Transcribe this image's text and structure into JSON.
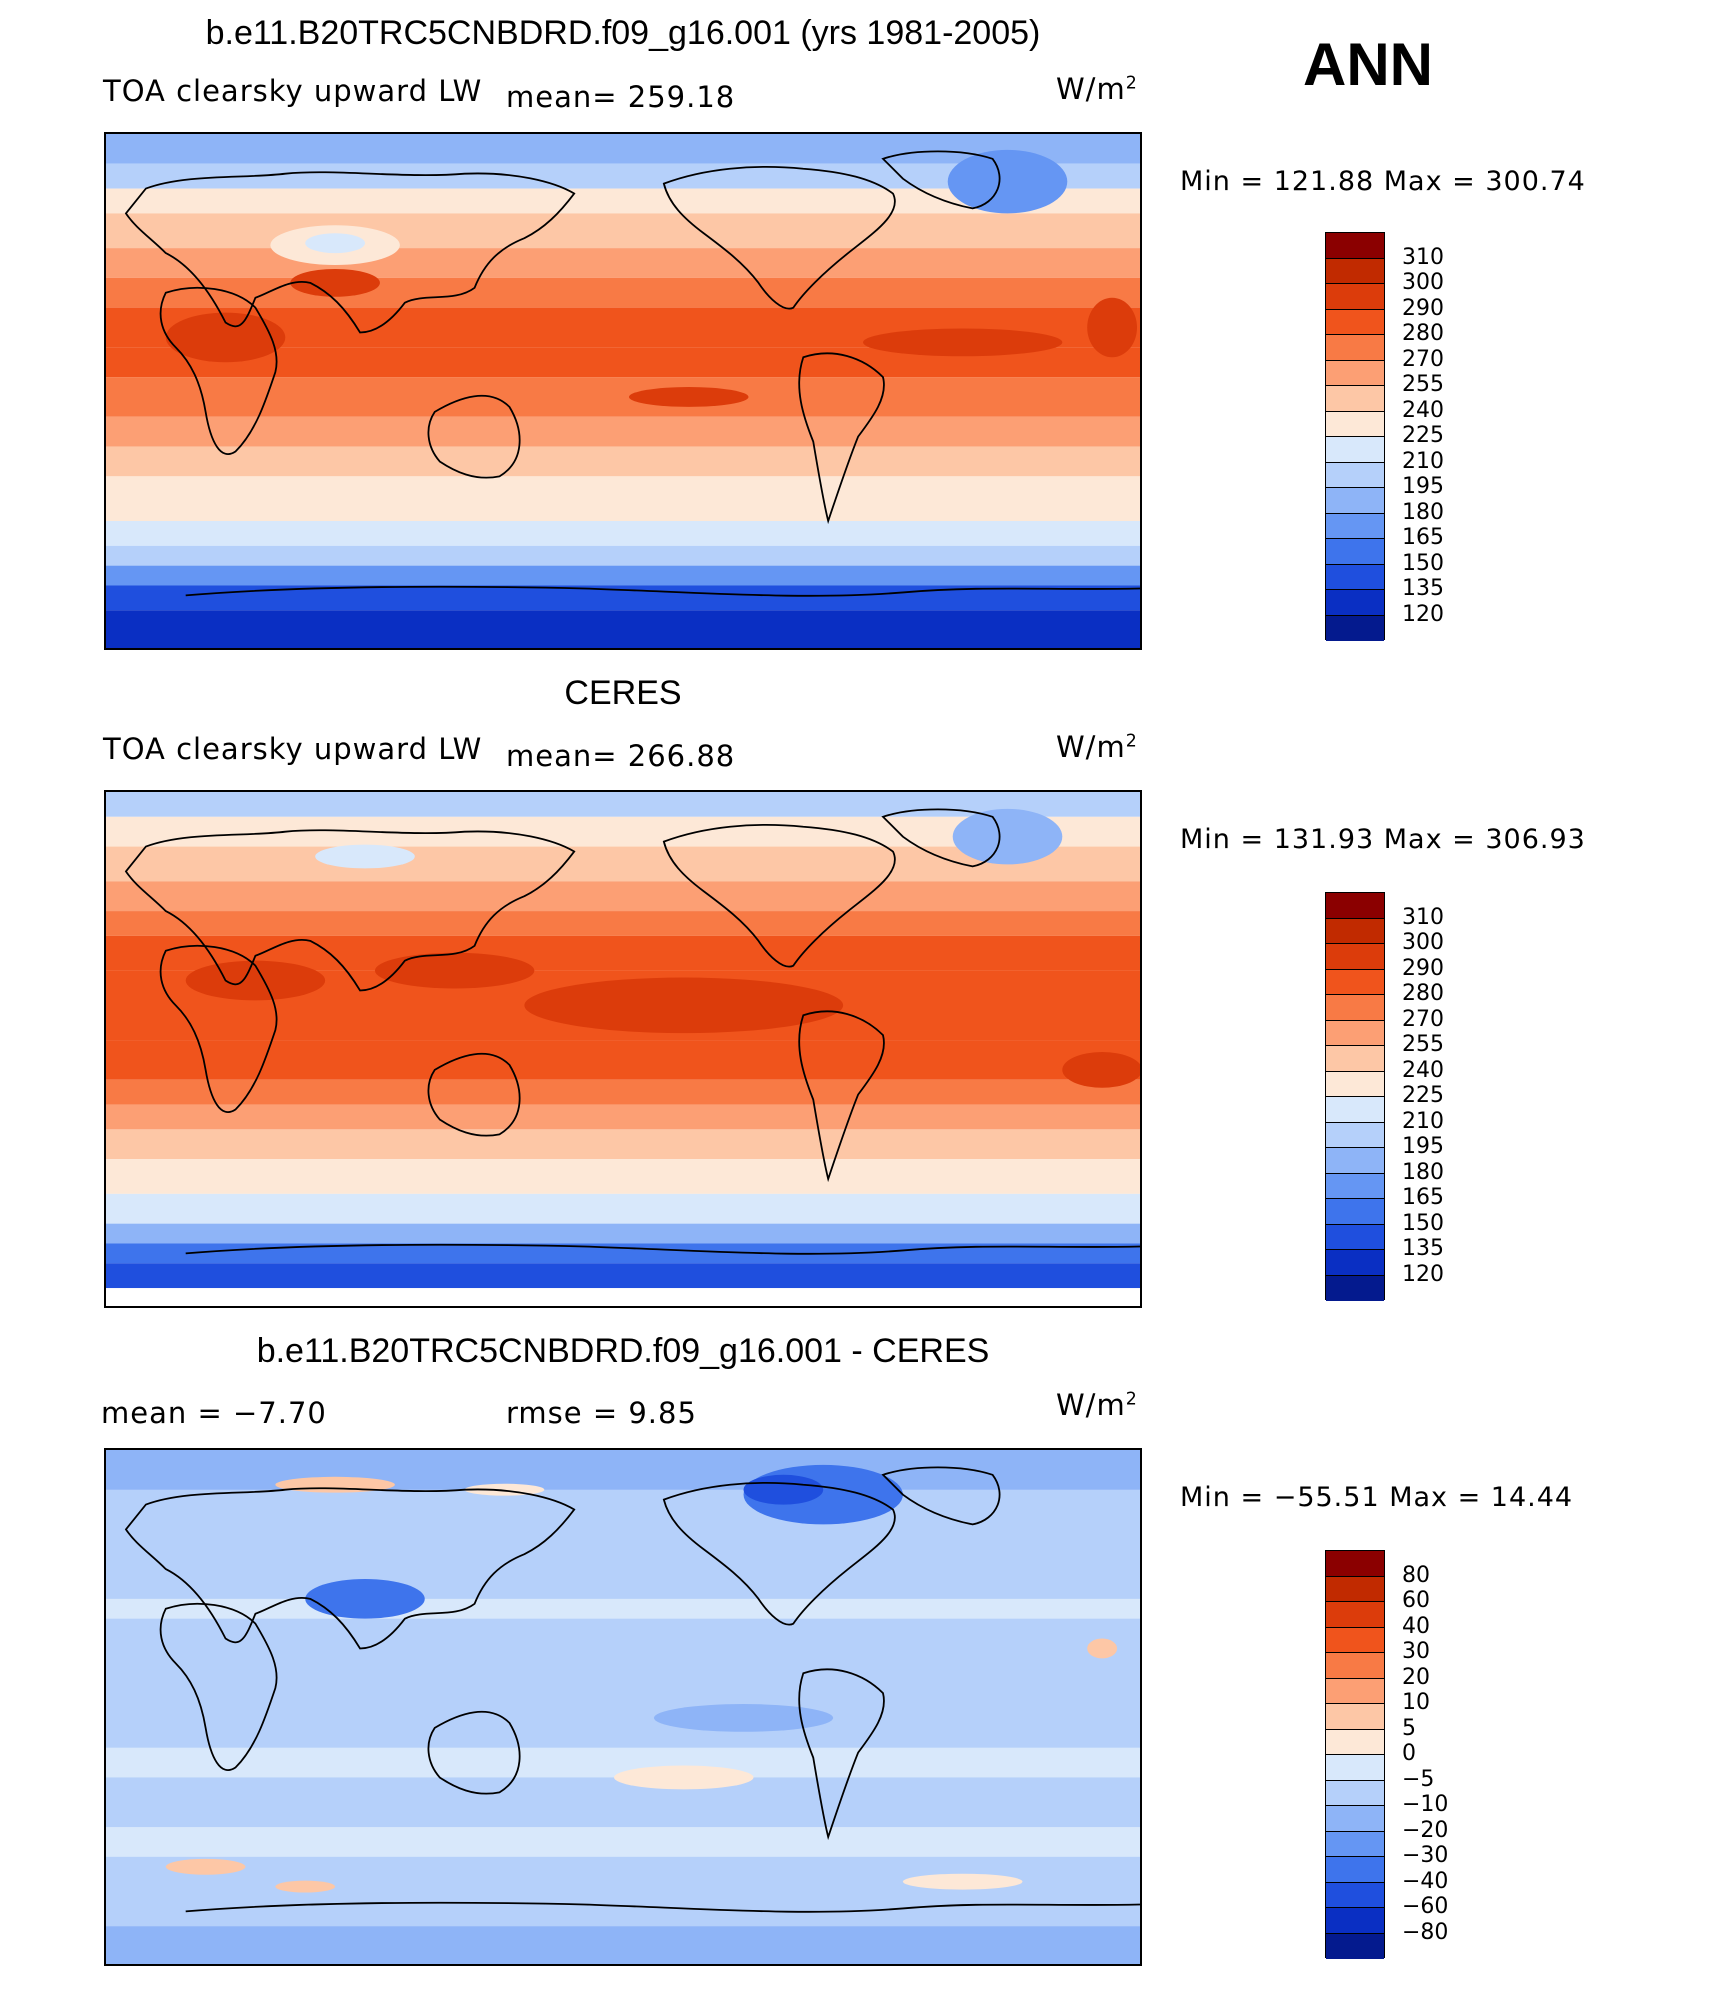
{
  "season": "ANN",
  "panels": [
    {
      "title": "b.e11.B20TRC5CNBDRD.f09_g16.001 (yrs 1981-2005)",
      "left_label": "TOA clearsky upward LW",
      "mid_label": "mean=  259.18",
      "units_base": "W/m",
      "units_exp": "2",
      "minmax": "Min  =  121.88  Max  =  300.74",
      "colorbar": {
        "levels": [
          "310",
          "300",
          "290",
          "280",
          "270",
          "255",
          "240",
          "225",
          "210",
          "195",
          "180",
          "165",
          "150",
          "135",
          "120"
        ],
        "colors": [
          "#8b0000",
          "#c12a00",
          "#dc3c0b",
          "#f0541c",
          "#f87a45",
          "#fc9f74",
          "#fdc7a6",
          "#fde8d7",
          "#d8e8fb",
          "#b5d0fa",
          "#8eb4f7",
          "#6596f3",
          "#3e74ec",
          "#1f4fde",
          "#0a2fc3",
          "#041a8e"
        ]
      }
    },
    {
      "title": "CERES",
      "left_label": "TOA clearsky upward LW",
      "mid_label": "mean=  266.88",
      "units_base": "W/m",
      "units_exp": "2",
      "minmax": "Min  =  131.93  Max  =  306.93",
      "colorbar": {
        "levels": [
          "310",
          "300",
          "290",
          "280",
          "270",
          "255",
          "240",
          "225",
          "210",
          "195",
          "180",
          "165",
          "150",
          "135",
          "120"
        ],
        "colors": [
          "#8b0000",
          "#c12a00",
          "#dc3c0b",
          "#f0541c",
          "#f87a45",
          "#fc9f74",
          "#fdc7a6",
          "#fde8d7",
          "#d8e8fb",
          "#b5d0fa",
          "#8eb4f7",
          "#6596f3",
          "#3e74ec",
          "#1f4fde",
          "#0a2fc3",
          "#041a8e"
        ]
      }
    },
    {
      "title": "b.e11.B20TRC5CNBDRD.f09_g16.001 - CERES",
      "left_label": "mean  =    −7.70",
      "mid_label": "rmse  =      9.85",
      "units_base": "W/m",
      "units_exp": "2",
      "minmax": "Min  =  −55.51  Max  =    14.44",
      "colorbar": {
        "levels": [
          "80",
          "60",
          "40",
          "30",
          "20",
          "10",
          "5",
          "0",
          "−5",
          "−10",
          "−20",
          "−30",
          "−40",
          "−60",
          "−80"
        ],
        "colors": [
          "#8b0000",
          "#c12a00",
          "#dc3c0b",
          "#f0541c",
          "#f87a45",
          "#fc9f74",
          "#fdc7a6",
          "#fde8d7",
          "#d8e8fb",
          "#b5d0fa",
          "#8eb4f7",
          "#6596f3",
          "#3e74ec",
          "#1f4fde",
          "#0a2fc3",
          "#041a8e"
        ]
      }
    }
  ]
}
